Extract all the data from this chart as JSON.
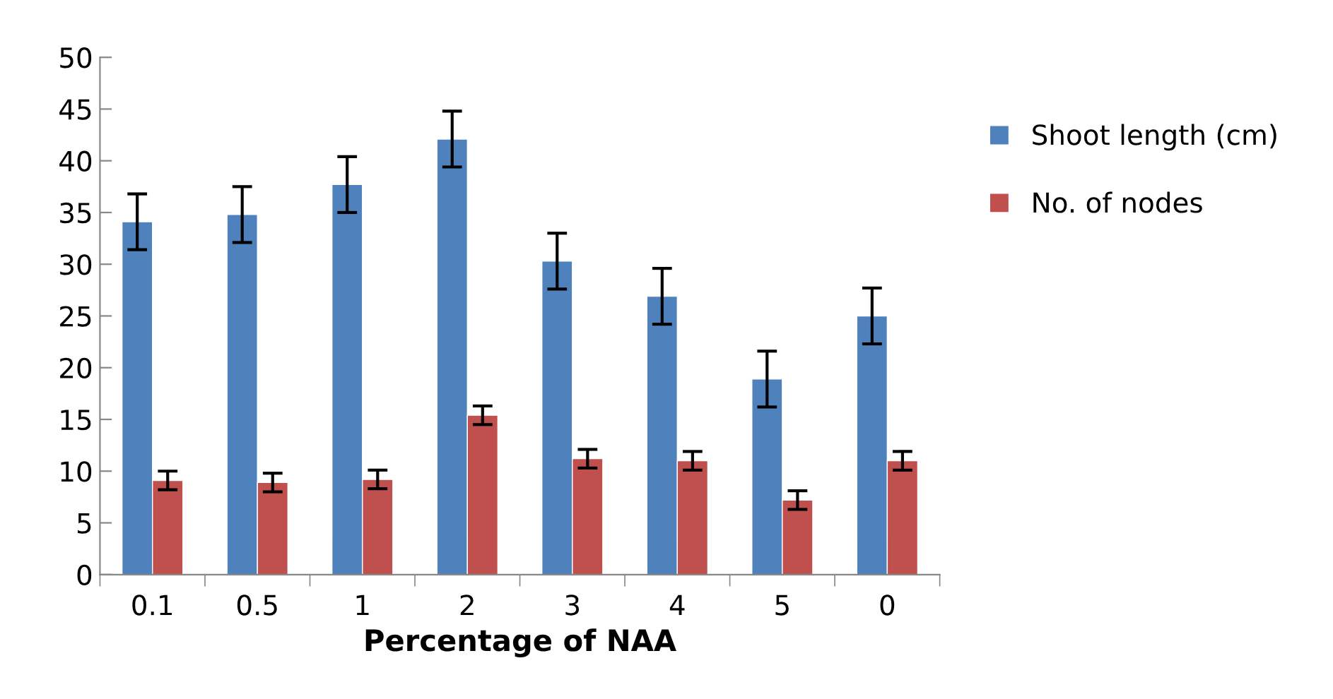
{
  "chart_data": {
    "type": "bar",
    "xlabel": "Percentage of NAA",
    "categories": [
      "0.1",
      "0.5",
      "1",
      "2",
      "3",
      "4",
      "5",
      "0"
    ],
    "series": [
      {
        "name": "Shoot length (cm)",
        "color": "#4f81bd",
        "values": [
          34.1,
          34.8,
          37.7,
          42.1,
          30.3,
          26.9,
          18.9,
          25.0
        ],
        "errors": [
          2.7,
          2.7,
          2.7,
          2.7,
          2.7,
          2.7,
          2.7,
          2.7
        ]
      },
      {
        "name": "No. of nodes",
        "color": "#c0504d",
        "values": [
          9.1,
          8.9,
          9.2,
          15.4,
          11.2,
          11.0,
          7.2,
          11.0
        ],
        "errors": [
          0.9,
          0.9,
          0.9,
          0.9,
          0.9,
          0.9,
          0.9,
          0.9
        ]
      }
    ],
    "ylim": [
      0,
      50
    ],
    "yticks": [
      0,
      5,
      10,
      15,
      20,
      25,
      30,
      35,
      40,
      45,
      50
    ],
    "grid": false,
    "legend": "right"
  }
}
